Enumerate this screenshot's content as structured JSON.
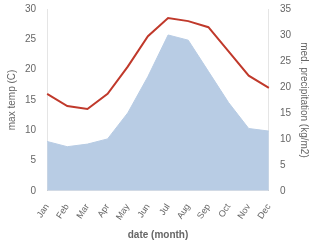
{
  "chart_data": {
    "type": "line",
    "xlabel": "date (month)",
    "ylabel": "max temp (C)",
    "y2label": "med. precipitation (kg/m2)",
    "categories": [
      "Jan",
      "Feb",
      "Mar",
      "Apr",
      "May",
      "Jun",
      "Jul",
      "Aug",
      "Sep",
      "Oct",
      "Nov",
      "Dec"
    ],
    "series": [
      {
        "type": "area",
        "color": "#b8cce4",
        "axis": "y2",
        "values": [
          9.5,
          8.5,
          9.0,
          10.0,
          15.0,
          22.0,
          30.0,
          29.0,
          23.0,
          17.0,
          12.0,
          11.5
        ]
      },
      {
        "type": "line",
        "color": "#c0392b",
        "values": [
          16.0,
          14.0,
          13.5,
          16.0,
          20.5,
          25.5,
          28.5,
          28.0,
          27.0,
          23.0,
          19.0,
          17.0
        ]
      }
    ],
    "ylim": [
      0,
      30
    ],
    "yticks": [
      0,
      5,
      10,
      15,
      20,
      25,
      30
    ],
    "y2lim": [
      0,
      35
    ],
    "y2ticks": [
      0,
      5,
      10,
      15,
      20,
      25,
      30,
      35
    ],
    "grid": false
  }
}
